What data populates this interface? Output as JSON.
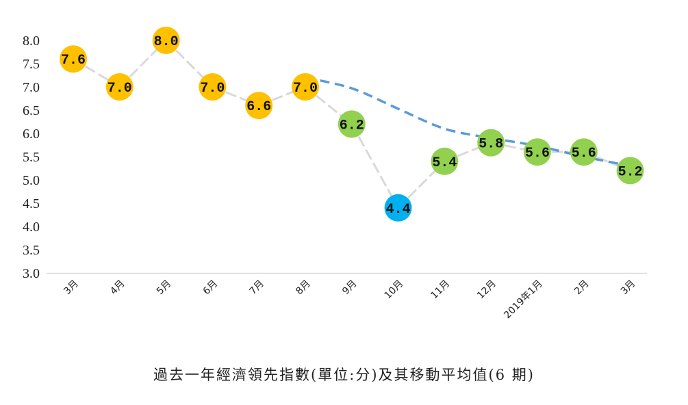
{
  "chart_data": {
    "type": "line",
    "title": "過去一年經濟領先指數(單位:分)及其移動平均值(6 期)",
    "categories": [
      "3月",
      "4月",
      "5月",
      "6月",
      "7月",
      "8月",
      "9月",
      "10月",
      "11月",
      "12月",
      "2019年1月",
      "2月",
      "3月"
    ],
    "series": [
      {
        "values": [
          7.6,
          7.0,
          8.0,
          7.0,
          6.6,
          7.0,
          6.2,
          4.4,
          5.4,
          5.8,
          5.6,
          5.6,
          5.2
        ],
        "point_colors": [
          "#FFC000",
          "#FFC000",
          "#FFC000",
          "#FFC000",
          "#FFC000",
          "#FFC000",
          "#92D050",
          "#00B0F0",
          "#92D050",
          "#92D050",
          "#92D050",
          "#92D050",
          "#92D050"
        ],
        "line_color": "#D9D9D9"
      },
      {
        "values": [
          null,
          null,
          null,
          null,
          null,
          7.2,
          6.97,
          6.53,
          6.1,
          5.9,
          5.73,
          5.5,
          5.3
        ],
        "line_color": "#5B9BD5"
      }
    ],
    "yticks": [
      "3.0",
      "3.5",
      "4.0",
      "4.5",
      "5.0",
      "5.5",
      "6.0",
      "6.5",
      "7.0",
      "7.5",
      "8.0"
    ],
    "ylim": [
      3.0,
      8.0
    ],
    "grid": false,
    "legend": "none"
  }
}
